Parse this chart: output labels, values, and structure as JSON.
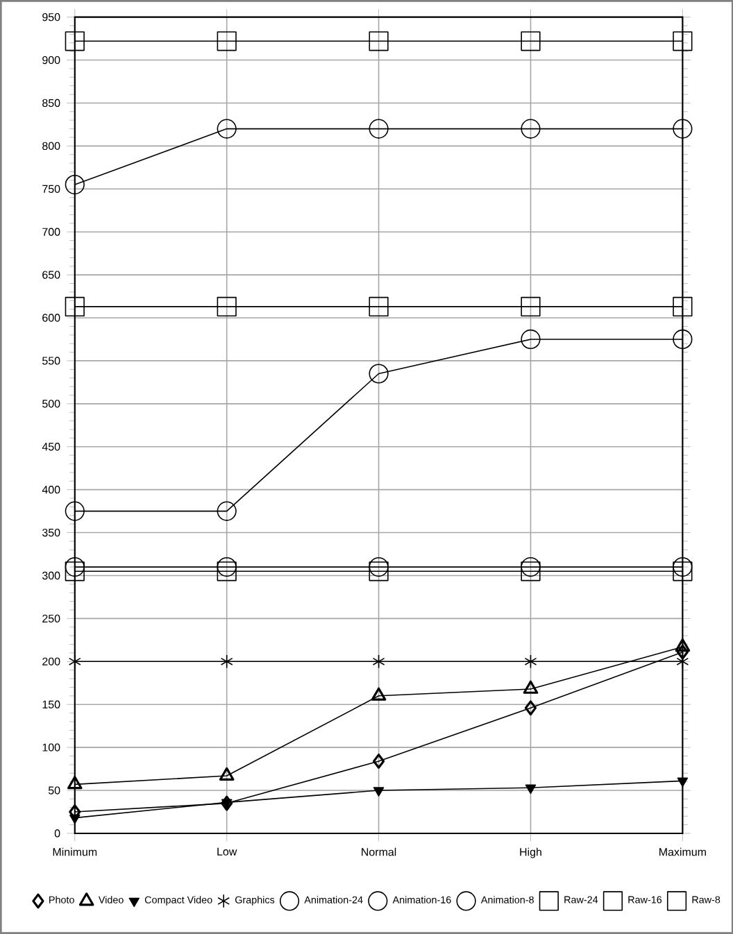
{
  "chart_data": {
    "type": "line",
    "categories": [
      "Minimum",
      "Low",
      "Normal",
      "High",
      "Maximum"
    ],
    "ylim": [
      0,
      950
    ],
    "yticks": [
      0,
      50,
      100,
      150,
      200,
      250,
      300,
      350,
      400,
      450,
      500,
      550,
      600,
      650,
      700,
      750,
      800,
      850,
      900,
      950
    ],
    "grid": true,
    "legend": "bottom",
    "series": [
      {
        "name": "Photo",
        "color": "#000000",
        "marker": "diamond",
        "values": [
          25,
          35,
          84,
          146,
          211
        ]
      },
      {
        "name": "Video",
        "color": "#000000",
        "marker": "triangle",
        "values": [
          57,
          67,
          160,
          168,
          217
        ]
      },
      {
        "name": "Compact Video",
        "color": "#000000",
        "marker": "triangle-down",
        "values": [
          18,
          36,
          50,
          53,
          61
        ]
      },
      {
        "name": "Graphics",
        "color": "#000000",
        "marker": "cross",
        "values": [
          200,
          200,
          200,
          200,
          200
        ]
      },
      {
        "name": "Animation-24",
        "color": "#000000",
        "marker": "circle",
        "values": [
          310,
          310,
          310,
          310,
          310
        ]
      },
      {
        "name": "Animation-16",
        "color": "#000000",
        "marker": "circle",
        "values": [
          375,
          375,
          535,
          575,
          575
        ]
      },
      {
        "name": "Animation-8",
        "color": "#000000",
        "marker": "circle",
        "values": [
          755,
          820,
          820,
          820,
          820
        ]
      },
      {
        "name": "Raw-24",
        "color": "#000000",
        "marker": "square",
        "values": [
          922,
          922,
          922,
          922,
          922
        ]
      },
      {
        "name": "Raw-16",
        "color": "#000000",
        "marker": "square",
        "values": [
          613,
          613,
          613,
          613,
          613
        ]
      },
      {
        "name": "Raw-8",
        "color": "#000000",
        "marker": "square",
        "values": [
          305,
          305,
          305,
          305,
          305
        ]
      }
    ]
  }
}
